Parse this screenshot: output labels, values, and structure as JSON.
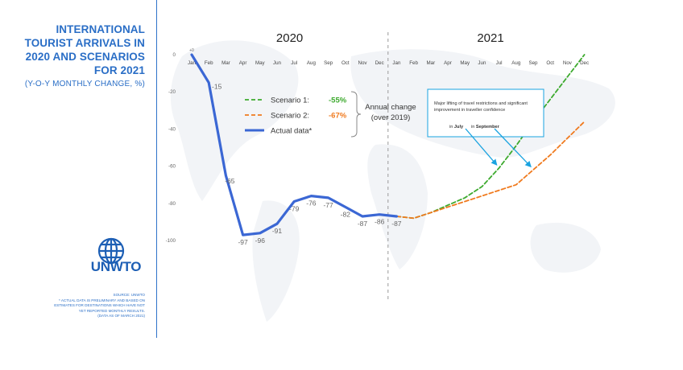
{
  "sidebar": {
    "title_lines": [
      "INTERNATIONAL",
      "TOURIST ARRIVALS IN",
      "2020 AND SCENARIOS",
      "FOR 2021"
    ],
    "subtitle": "(Y-O-Y MONTHLY CHANGE, %)",
    "logo_text": "UNWTO",
    "source_lines": [
      "SOURCE: UNWTO",
      "* ACTUAL DATA IS PRELIMINARY AND BASED ON",
      "ESTIMATES FOR DESTINATIONS WHICH HAVE NOT",
      "YET REPORTED MONTHLY RESULTS.",
      "(DATA AS OF MARCH 2021)"
    ]
  },
  "colors": {
    "actual": "#3b67d4",
    "scenario1": "#3daa2e",
    "scenario2": "#f07a1e",
    "accent": "#2a6ec6",
    "annotation": "#1aa3e0"
  },
  "chart_data": {
    "type": "line",
    "year_labels": [
      "2020",
      "2021"
    ],
    "x": [
      "Jan",
      "Feb",
      "Mar",
      "Apr",
      "May",
      "Jun",
      "Jul",
      "Aug",
      "Sep",
      "Oct",
      "Nov",
      "Dec",
      "Jan",
      "Feb",
      "Mar",
      "Apr",
      "May",
      "Jun",
      "Jul",
      "Aug",
      "Sep",
      "Oct",
      "Nov",
      "Dec"
    ],
    "y_ticks": [
      "0",
      "-20",
      "-40",
      "-60",
      "-80",
      "-100"
    ],
    "ylim": [
      -100,
      0
    ],
    "grid": false,
    "series": [
      {
        "name": "Actual data*",
        "style": "solid",
        "values": [
          0,
          -15,
          -65,
          -97,
          -96,
          -91,
          -79,
          -76,
          -77,
          -82,
          -87,
          -86,
          -87,
          null,
          null,
          null,
          null,
          null,
          null,
          null,
          null,
          null,
          null,
          null
        ]
      },
      {
        "name": "Scenario 1:",
        "style": "dashed",
        "values": [
          null,
          null,
          null,
          null,
          null,
          null,
          null,
          null,
          null,
          null,
          null,
          null,
          -87,
          -88,
          -85,
          -81,
          -77,
          -71,
          -61,
          -49,
          -36,
          -24,
          -12,
          0
        ]
      },
      {
        "name": "Scenario 2:",
        "style": "dashed",
        "values": [
          null,
          null,
          null,
          null,
          null,
          null,
          null,
          null,
          null,
          null,
          null,
          null,
          -87,
          -88,
          -85,
          -82,
          -79,
          -76,
          -73,
          -70,
          -62,
          -54,
          -45,
          -36
        ]
      }
    ],
    "point_labels": [
      {
        "index": 0,
        "text": "+0",
        "series": 0
      },
      {
        "index": 1,
        "text": "-15",
        "series": 0
      },
      {
        "index": 2,
        "text": "-65",
        "series": 0
      },
      {
        "index": 3,
        "text": "-97",
        "series": 0
      },
      {
        "index": 4,
        "text": "-96",
        "series": 0
      },
      {
        "index": 5,
        "text": "-91",
        "series": 0
      },
      {
        "index": 6,
        "text": "-79",
        "series": 0
      },
      {
        "index": 7,
        "text": "-76",
        "series": 0
      },
      {
        "index": 8,
        "text": "-77",
        "series": 0
      },
      {
        "index": 9,
        "text": "-82",
        "series": 0
      },
      {
        "index": 10,
        "text": "-87",
        "series": 0
      },
      {
        "index": 11,
        "text": "-86",
        "series": 0
      },
      {
        "index": 12,
        "text": "-87",
        "series": 0
      }
    ],
    "legend": {
      "items": [
        {
          "label": "Scenario 1:",
          "value": "-55%",
          "series": 1
        },
        {
          "label": "Scenario 2:",
          "value": "-67%",
          "series": 2
        },
        {
          "label": "Actual data*",
          "value": "",
          "series": 0
        }
      ],
      "bracket_label_lines": [
        "Annual change",
        "(over 2019)"
      ],
      "position": "top-center"
    },
    "annotation": {
      "text_lines": [
        "Major lifting of travel restrictions and significant",
        "improvement in traveller confidence"
      ],
      "prefix": "in",
      "markers": [
        "July",
        "September"
      ],
      "targets": [
        {
          "series": 1,
          "index": 18
        },
        {
          "series": 2,
          "index": 20
        }
      ]
    }
  }
}
